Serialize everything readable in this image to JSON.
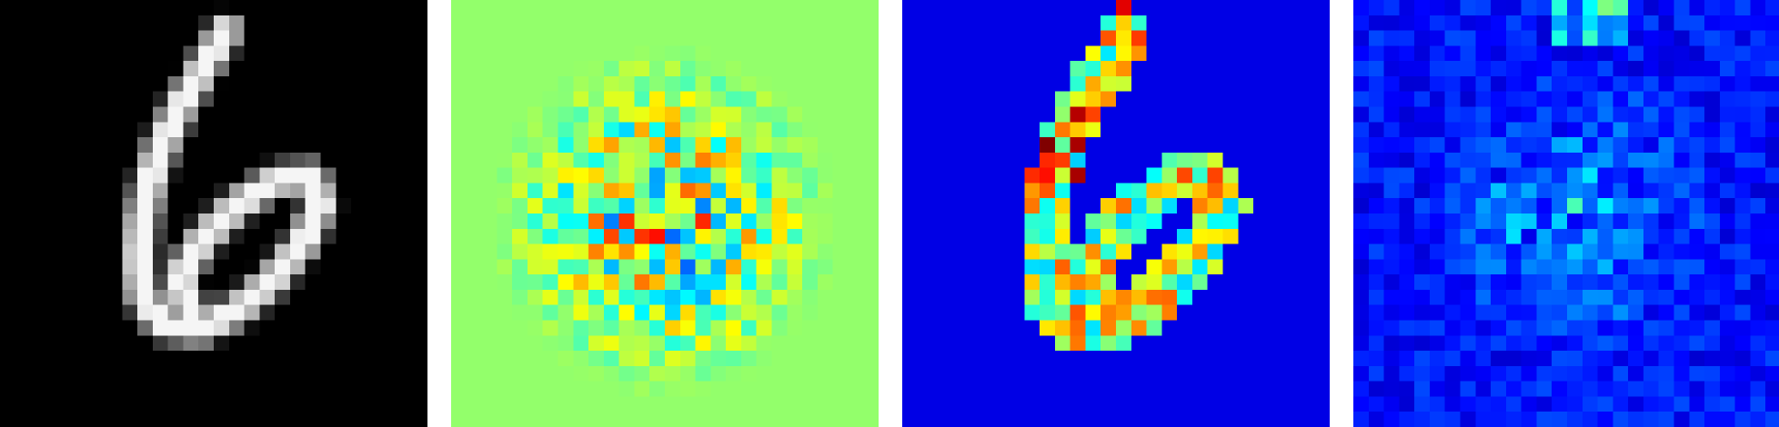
{
  "figure": {
    "grid_size": 28,
    "panels": [
      {
        "id": "input-digit",
        "colormap": "gray"
      },
      {
        "id": "signed-attribution-map",
        "colormap": "jet"
      },
      {
        "id": "jet-saliency-map",
        "colormap": "jet"
      },
      {
        "id": "noisy-saliency-map",
        "colormap": "jet"
      }
    ]
  }
}
